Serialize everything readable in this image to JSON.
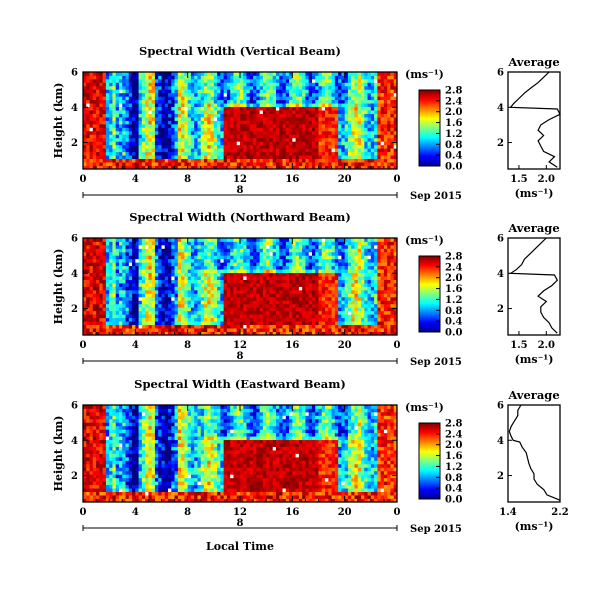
{
  "chart_data": [
    {
      "type": "heatmap",
      "title": "Spectral Width (Vertical Beam)",
      "ylabel": "Height (km)",
      "xlabel": "",
      "date_label": "Sep 2015",
      "day_label": "8",
      "x_ticks": [
        "0",
        "4",
        "8",
        "12",
        "16",
        "20",
        "0"
      ],
      "xlim": [
        0,
        24
      ],
      "y_ticks": [
        "2",
        "4",
        "6"
      ],
      "ylim": [
        0.5,
        6
      ],
      "colorbar": {
        "unit": "(ms⁻¹)",
        "range": [
          0.0,
          2.8
        ],
        "ticks": [
          "0.0",
          "0.4",
          "0.8",
          "1.2",
          "1.6",
          "2.0",
          "2.4",
          "2.8"
        ]
      },
      "average": {
        "title": "Average",
        "xlabel": "(ms⁻¹)",
        "x_ticks": [
          "1.5",
          "2.0"
        ],
        "xlim": [
          1.3,
          2.25
        ],
        "y_ticks": [
          "2",
          "4",
          "6"
        ],
        "ylim": [
          0.5,
          6
        ],
        "height": [
          0.6,
          0.9,
          1.2,
          1.5,
          1.8,
          2.1,
          2.4,
          2.7,
          3.0,
          3.3,
          3.6,
          3.9,
          4.0,
          4.2,
          4.5,
          4.8,
          5.1,
          5.4,
          5.7,
          6.0
        ],
        "value": [
          2.2,
          2.05,
          2.15,
          1.95,
          1.9,
          1.85,
          1.95,
          1.85,
          1.9,
          2.05,
          2.25,
          2.2,
          1.35,
          1.4,
          1.5,
          1.6,
          1.72,
          1.85,
          1.95,
          2.05
        ]
      }
    },
    {
      "type": "heatmap",
      "title": "Spectral Width (Northward Beam)",
      "ylabel": "Height (km)",
      "xlabel": "",
      "date_label": "Sep 2015",
      "day_label": "8",
      "x_ticks": [
        "0",
        "4",
        "8",
        "12",
        "16",
        "20",
        "0"
      ],
      "xlim": [
        0,
        24
      ],
      "y_ticks": [
        "2",
        "4",
        "6"
      ],
      "ylim": [
        0.5,
        6
      ],
      "colorbar": {
        "unit": "(ms⁻¹)",
        "range": [
          0.0,
          2.8
        ],
        "ticks": [
          "0.0",
          "0.4",
          "0.8",
          "1.2",
          "1.6",
          "2.0",
          "2.4",
          "2.8"
        ]
      },
      "average": {
        "title": "Average",
        "xlabel": "(ms⁻¹)",
        "x_ticks": [
          "1.5",
          "2.0"
        ],
        "xlim": [
          1.3,
          2.25
        ],
        "y_ticks": [
          "2",
          "4",
          "6"
        ],
        "ylim": [
          0.5,
          6
        ],
        "height": [
          0.6,
          0.9,
          1.2,
          1.5,
          1.8,
          2.1,
          2.4,
          2.7,
          3.0,
          3.3,
          3.6,
          3.9,
          4.0,
          4.2,
          4.5,
          4.8,
          5.1,
          5.4,
          5.7,
          6.0
        ],
        "value": [
          2.2,
          2.1,
          2.05,
          1.95,
          1.9,
          1.9,
          2.0,
          1.85,
          1.95,
          2.1,
          2.2,
          2.15,
          1.35,
          1.45,
          1.55,
          1.6,
          1.7,
          1.8,
          1.9,
          2.0
        ]
      }
    },
    {
      "type": "heatmap",
      "title": "Spectral Width (Eastward Beam)",
      "ylabel": "Height (km)",
      "xlabel": "Local Time",
      "date_label": "Sep 2015",
      "day_label": "8",
      "x_ticks": [
        "0",
        "4",
        "8",
        "12",
        "16",
        "20",
        "0"
      ],
      "xlim": [
        0,
        24
      ],
      "y_ticks": [
        "2",
        "4",
        "6"
      ],
      "ylim": [
        0.5,
        6
      ],
      "colorbar": {
        "unit": "(ms⁻¹)",
        "range": [
          0.0,
          2.8
        ],
        "ticks": [
          "0.0",
          "0.4",
          "0.8",
          "1.2",
          "1.6",
          "2.0",
          "2.4",
          "2.8"
        ]
      },
      "average": {
        "title": "Average",
        "xlabel": "(ms⁻¹)",
        "x_ticks": [
          "1.4",
          "2.2"
        ],
        "xlim": [
          1.4,
          2.2
        ],
        "y_ticks": [
          "2",
          "4",
          "6"
        ],
        "ylim": [
          0.5,
          6
        ],
        "height": [
          0.6,
          0.9,
          1.2,
          1.5,
          1.8,
          2.1,
          2.4,
          2.7,
          3.0,
          3.3,
          3.6,
          3.9,
          4.0,
          4.2,
          4.5,
          4.8,
          5.1,
          5.4,
          5.7,
          6.0
        ],
        "value": [
          2.2,
          2.0,
          1.95,
          1.85,
          1.8,
          1.8,
          1.75,
          1.72,
          1.7,
          1.68,
          1.62,
          1.58,
          1.48,
          1.45,
          1.42,
          1.45,
          1.5,
          1.55,
          1.55,
          1.6
        ]
      }
    }
  ]
}
